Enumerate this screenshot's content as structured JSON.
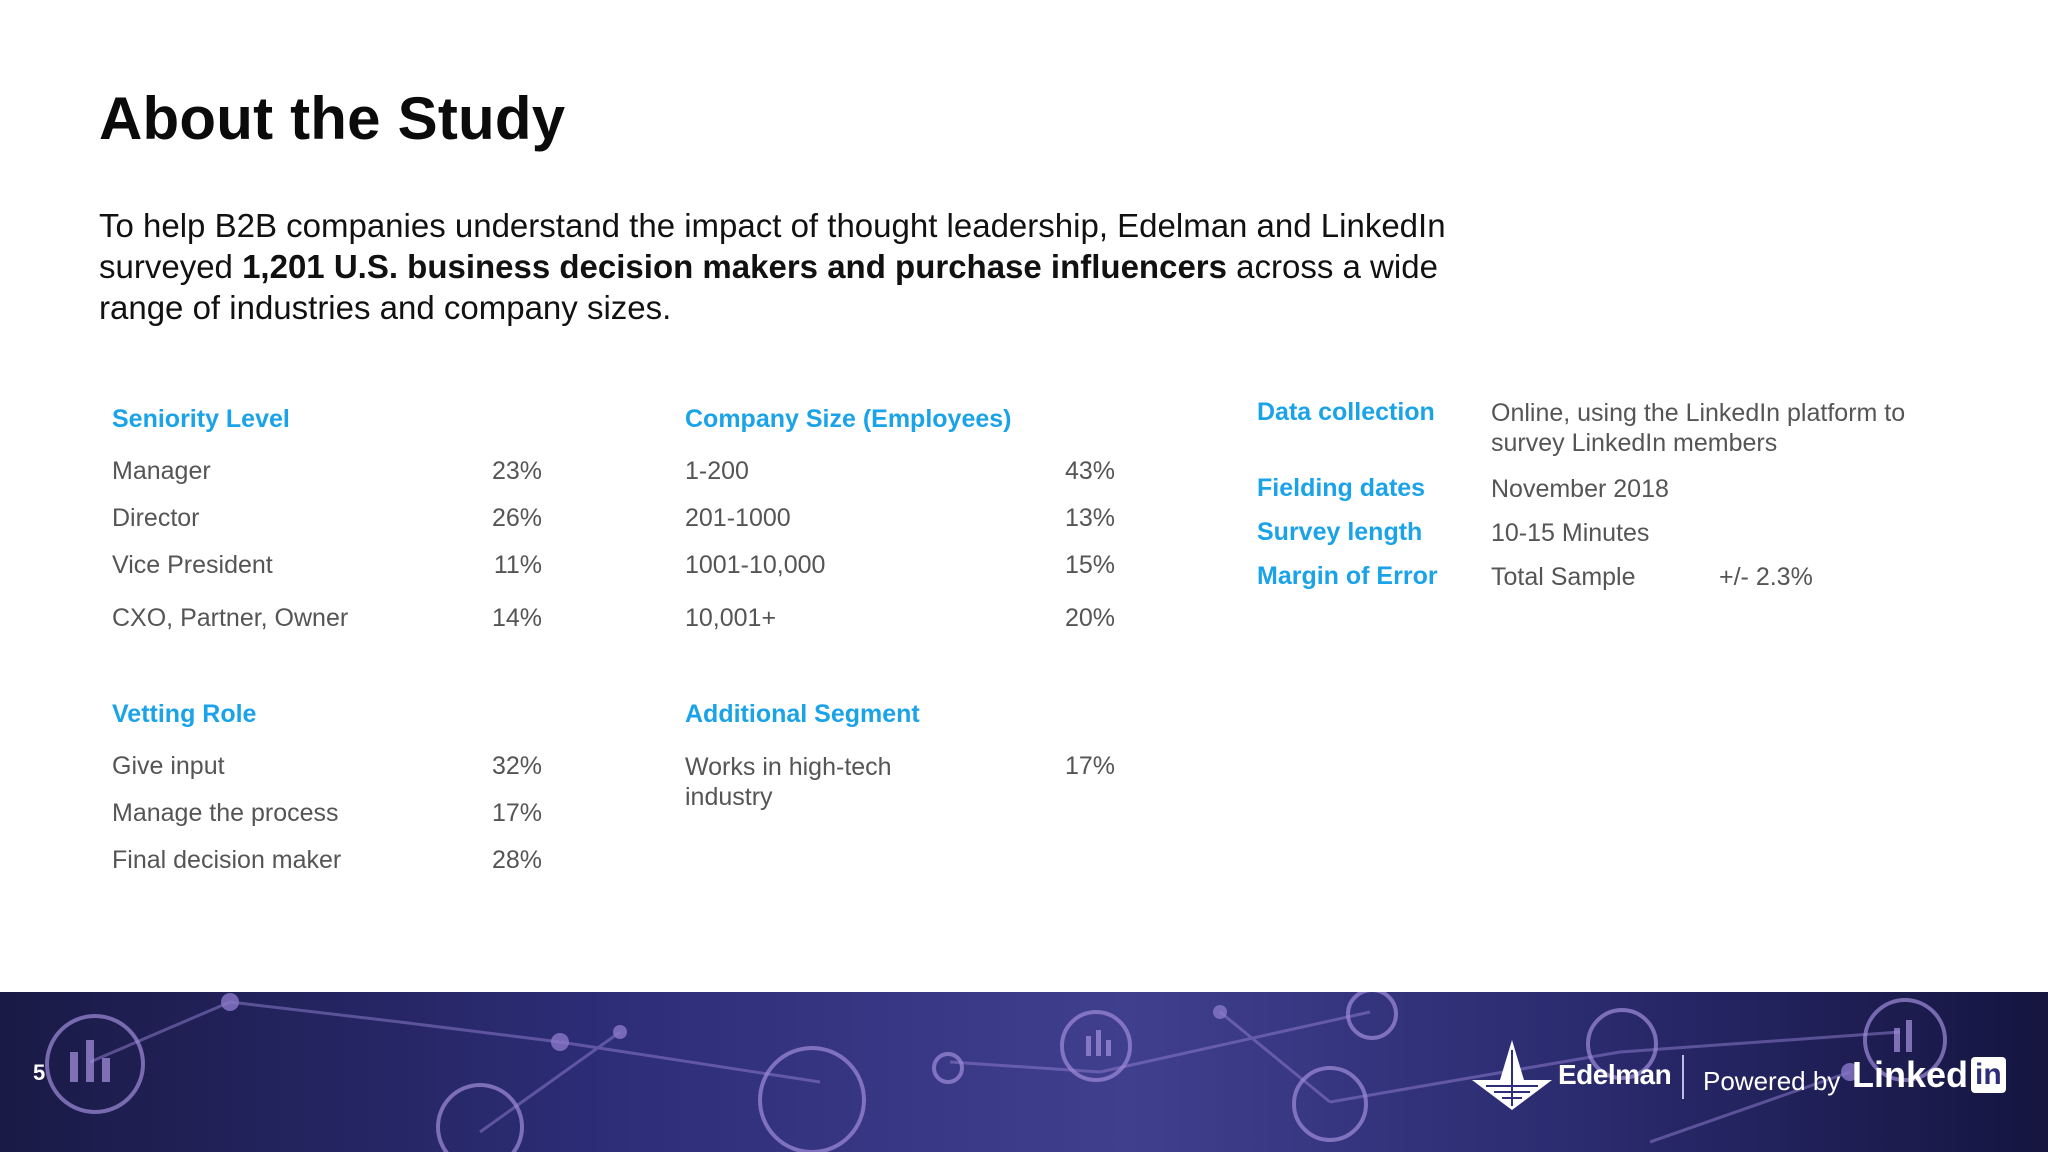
{
  "title": "About the Study",
  "intro": {
    "pre": "To help B2B companies understand the impact of thought leadership, Edelman and LinkedIn surveyed ",
    "bold": "1,201 U.S. business decision makers and purchase influencers",
    "post": " across a wide range of industries and company sizes."
  },
  "seniority": {
    "heading": "Seniority Level",
    "rows": [
      {
        "label": "Manager",
        "value": "23%"
      },
      {
        "label": "Director",
        "value": "26%"
      },
      {
        "label": "Vice President",
        "value": "11%"
      },
      {
        "label": "CXO, Partner, Owner",
        "value": "14%"
      }
    ]
  },
  "company_size": {
    "heading": "Company Size (Employees)",
    "rows": [
      {
        "label": "1-200",
        "value": "43%"
      },
      {
        "label": "201-1000",
        "value": "13%"
      },
      {
        "label": "1001-10,000",
        "value": "15%"
      },
      {
        "label": "10,001+",
        "value": "20%"
      }
    ]
  },
  "vetting": {
    "heading": "Vetting Role",
    "rows": [
      {
        "label": "Give input",
        "value": "32%"
      },
      {
        "label": "Manage the process",
        "value": "17%"
      },
      {
        "label": "Final decision maker",
        "value": "28%"
      }
    ]
  },
  "additional": {
    "heading": "Additional Segment",
    "rows": [
      {
        "label": "Works in high-tech industry",
        "value": "17%"
      }
    ]
  },
  "meta": {
    "data_collection": {
      "key": "Data collection",
      "value": "Online, using the LinkedIn platform to survey LinkedIn members"
    },
    "fielding": {
      "key": "Fielding dates",
      "value": "November 2018"
    },
    "survey_length": {
      "key": "Survey length",
      "value": "10-15 Minutes"
    },
    "margin": {
      "key": "Margin of Error",
      "sub": "Total Sample",
      "value": "+/- 2.3%"
    }
  },
  "footer": {
    "page_number": "5",
    "edelman": "Edelman",
    "powered_by": "Powered by",
    "linkedin_text": "Linked",
    "linkedin_box": "in"
  },
  "colors": {
    "accent": "#1aa3e8",
    "body_text": "#555555",
    "footer_bg": "#2d2d78"
  }
}
